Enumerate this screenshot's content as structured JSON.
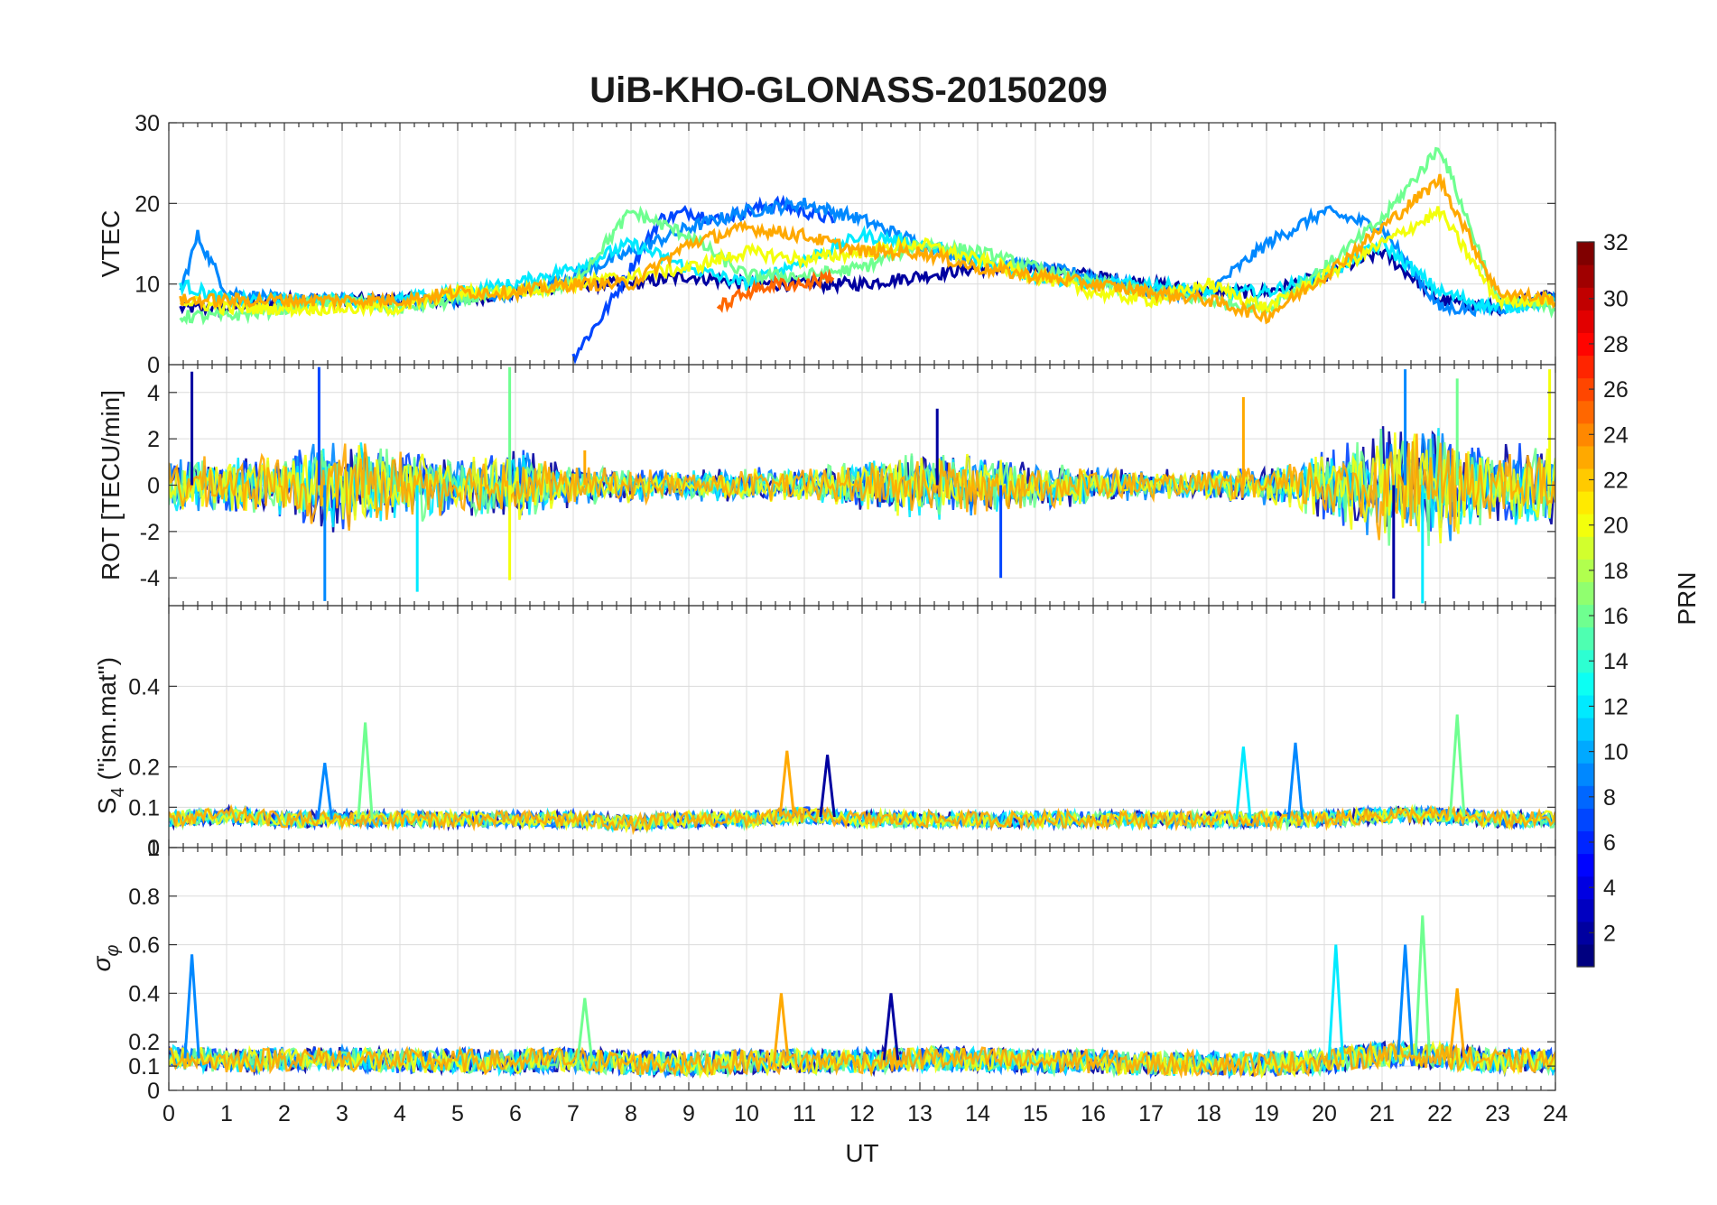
{
  "chart_data": {
    "type": "line",
    "title": "UiB-KHO-GLONASS-20150209",
    "xlabel": "UT",
    "xlim": [
      0,
      24
    ],
    "xticks": [
      0,
      1,
      2,
      3,
      4,
      5,
      6,
      7,
      8,
      9,
      10,
      11,
      12,
      13,
      14,
      15,
      16,
      17,
      18,
      19,
      20,
      21,
      22,
      23,
      24
    ],
    "panels": [
      {
        "id": "vtec",
        "ylabel": "VTEC",
        "ylim": [
          0,
          30
        ],
        "ytick_labels": [
          "30",
          "20",
          "10"
        ],
        "yticks": [
          30,
          20,
          10
        ],
        "series": [
          {
            "prn": 2,
            "x": [
              0.2,
              1,
              2,
              3,
              4,
              5,
              6,
              7,
              8,
              9,
              10,
              11,
              12,
              13,
              14,
              15,
              16,
              17,
              18,
              19,
              20,
              21,
              22,
              23,
              24
            ],
            "y": [
              7,
              7,
              8,
              8,
              8,
              8,
              9,
              10,
              10,
              11,
              10,
              10,
              10,
              11,
              12,
              12,
              11,
              10,
              9,
              9,
              11,
              14,
              8,
              7,
              9
            ]
          },
          {
            "prn": 7,
            "x": [
              7.0,
              7.5,
              8.0,
              8.5,
              9.0,
              9.5,
              10.0,
              10.5,
              11.0,
              11.5
            ],
            "y": [
              1,
              6,
              12,
              18,
              19,
              18,
              19,
              20,
              19,
              18
            ]
          },
          {
            "prn": 9,
            "x": [
              0.2,
              0.5,
              1,
              2,
              3,
              4,
              5,
              6,
              7,
              8,
              9,
              10,
              11,
              12,
              13,
              14,
              15,
              16,
              17,
              18,
              19,
              20,
              21,
              22,
              23,
              24
            ],
            "y": [
              9,
              16,
              9,
              8,
              8,
              8,
              8,
              9,
              11,
              14,
              17,
              19,
              20,
              18,
              15,
              13,
              12,
              11,
              9,
              9,
              15,
              19,
              17,
              7,
              7,
              8
            ]
          },
          {
            "prn": 12,
            "x": [
              0.2,
              1,
              2,
              3,
              4,
              5,
              6,
              7,
              8,
              9,
              10,
              11,
              12,
              13,
              14,
              15,
              16,
              17,
              18,
              19,
              20,
              21,
              22,
              23,
              24
            ],
            "y": [
              10,
              8,
              8,
              8,
              8,
              9,
              10,
              12,
              15,
              12,
              10,
              13,
              16,
              15,
              13,
              11,
              10,
              10,
              9,
              9,
              11,
              15,
              9,
              7,
              8
            ]
          },
          {
            "prn": 16,
            "x": [
              0.2,
              1,
              2,
              3,
              4,
              5,
              6,
              7,
              8,
              9,
              10,
              11,
              12,
              13,
              14,
              15,
              16,
              17,
              18,
              19,
              20,
              21,
              22,
              23,
              24
            ],
            "y": [
              6,
              6,
              7,
              8,
              7,
              8,
              9,
              10,
              19,
              16,
              11,
              11,
              12,
              15,
              14,
              12,
              10,
              9,
              8,
              7,
              12,
              18,
              27,
              8,
              7
            ]
          },
          {
            "prn": 20,
            "x": [
              0.2,
              1,
              2,
              3,
              4,
              5,
              6,
              7,
              8,
              9,
              10,
              11,
              12,
              13,
              14,
              15,
              16,
              17,
              18,
              19,
              20,
              21,
              22,
              23,
              24
            ],
            "y": [
              8,
              7,
              7,
              7,
              7,
              9,
              9,
              10,
              11,
              12,
              14,
              13,
              14,
              15,
              13,
              11,
              9,
              8,
              10,
              7,
              11,
              15,
              19,
              8,
              8
            ]
          },
          {
            "prn": 23,
            "x": [
              0.2,
              1,
              2,
              3,
              4,
              5,
              6,
              7,
              8,
              9,
              10,
              11,
              12,
              13,
              14,
              15,
              16,
              17,
              18,
              19,
              20,
              21,
              22,
              23,
              24
            ],
            "y": [
              8,
              8,
              8,
              8,
              8,
              9,
              9,
              10,
              10,
              15,
              17,
              16,
              14,
              14,
              12,
              11,
              10,
              9,
              8,
              6,
              11,
              17,
              23,
              9,
              8
            ]
          },
          {
            "prn": 25,
            "x": [
              9.5,
              10,
              10.5,
              11,
              11.5
            ],
            "y": [
              7,
              9,
              10,
              10,
              11
            ]
          }
        ]
      },
      {
        "id": "rot",
        "ylabel": "ROT [TECU/min]",
        "ylim": [
          -5.2,
          5.2
        ],
        "ytick_labels": [
          "4",
          "2",
          "0",
          "-2",
          "-4"
        ],
        "yticks": [
          4,
          2,
          0,
          -2,
          -4
        ],
        "top_label": "0",
        "noise_envelope": {
          "hours": [
            0,
            1,
            2,
            3,
            4,
            5,
            6,
            7,
            8,
            9,
            10,
            11,
            12,
            13,
            14,
            15,
            16,
            17,
            18,
            19,
            20,
            21,
            22,
            23,
            24
          ],
          "amplitude": [
            1.5,
            1.2,
            1.6,
            2.2,
            1.8,
            1.2,
            1.8,
            1.0,
            0.8,
            0.7,
            0.8,
            0.8,
            1.2,
            1.6,
            1.4,
            1.1,
            0.9,
            0.7,
            0.7,
            0.9,
            1.6,
            2.8,
            2.8,
            1.9,
            2.0
          ]
        },
        "spikes": [
          {
            "x": 0.4,
            "y": 4.9
          },
          {
            "x": 2.6,
            "y": 5.1
          },
          {
            "x": 2.7,
            "y": -5.0
          },
          {
            "x": 4.3,
            "y": -4.6
          },
          {
            "x": 5.9,
            "y": 5.1
          },
          {
            "x": 5.9,
            "y": -4.1
          },
          {
            "x": 7.2,
            "y": 1.5
          },
          {
            "x": 13.3,
            "y": 3.3
          },
          {
            "x": 14.4,
            "y": -4.0
          },
          {
            "x": 21.4,
            "y": 5.0
          },
          {
            "x": 21.7,
            "y": -5.1
          },
          {
            "x": 22.3,
            "y": 4.6
          },
          {
            "x": 23.9,
            "y": 5.0
          },
          {
            "x": 18.6,
            "y": 3.8
          },
          {
            "x": 21.2,
            "y": -4.9
          }
        ]
      },
      {
        "id": "s4",
        "ylabel": "S4 (\"ism.mat\")",
        "ylim": [
          0,
          0.6
        ],
        "ytick_labels": [
          "0.4",
          "0.2",
          "0.1",
          "0"
        ],
        "yticks": [
          0.4,
          0.2,
          0.1,
          0
        ],
        "baseline_hours": [
          0,
          1,
          2,
          3,
          4,
          5,
          6,
          7,
          8,
          9,
          10,
          11,
          12,
          13,
          14,
          15,
          16,
          17,
          18,
          19,
          20,
          21,
          22,
          23,
          24
        ],
        "baseline_values": [
          0.07,
          0.08,
          0.07,
          0.07,
          0.07,
          0.07,
          0.07,
          0.07,
          0.06,
          0.07,
          0.07,
          0.08,
          0.07,
          0.07,
          0.07,
          0.07,
          0.07,
          0.07,
          0.07,
          0.07,
          0.07,
          0.08,
          0.08,
          0.07,
          0.07
        ],
        "peaks": [
          {
            "x": 2.7,
            "y": 0.21
          },
          {
            "x": 3.4,
            "y": 0.31
          },
          {
            "x": 10.7,
            "y": 0.24
          },
          {
            "x": 11.4,
            "y": 0.23
          },
          {
            "x": 18.6,
            "y": 0.25
          },
          {
            "x": 19.5,
            "y": 0.26
          },
          {
            "x": 22.3,
            "y": 0.33
          }
        ]
      },
      {
        "id": "sigphi",
        "ylabel": "σφ",
        "ylim": [
          0,
          1.0
        ],
        "ytick_labels": [
          "0.8",
          "0.6",
          "0.4",
          "0.2",
          "0.1",
          "0"
        ],
        "yticks": [
          0.8,
          0.6,
          0.4,
          0.2,
          0.1,
          0
        ],
        "top_label": "1",
        "baseline_hours": [
          0,
          1,
          2,
          3,
          4,
          5,
          6,
          7,
          8,
          9,
          10,
          11,
          12,
          13,
          14,
          15,
          16,
          17,
          18,
          19,
          20,
          21,
          22,
          23,
          24
        ],
        "baseline_values": [
          0.14,
          0.12,
          0.13,
          0.13,
          0.12,
          0.12,
          0.12,
          0.13,
          0.11,
          0.11,
          0.12,
          0.12,
          0.12,
          0.13,
          0.13,
          0.12,
          0.12,
          0.11,
          0.11,
          0.11,
          0.12,
          0.15,
          0.14,
          0.12,
          0.12
        ],
        "peaks": [
          {
            "x": 0.4,
            "y": 0.56
          },
          {
            "x": 7.2,
            "y": 0.38
          },
          {
            "x": 10.6,
            "y": 0.4
          },
          {
            "x": 12.5,
            "y": 0.4
          },
          {
            "x": 20.2,
            "y": 0.6
          },
          {
            "x": 21.4,
            "y": 0.6
          },
          {
            "x": 21.7,
            "y": 0.72
          },
          {
            "x": 22.3,
            "y": 0.42
          }
        ]
      }
    ],
    "colorbar": {
      "label": "PRN",
      "min": 1,
      "max": 32,
      "tick_labels": [
        "32",
        "30",
        "28",
        "26",
        "24",
        "22",
        "20",
        "18",
        "16",
        "14",
        "12",
        "10",
        "8",
        "6",
        "4",
        "2"
      ],
      "ticks": [
        32,
        30,
        28,
        26,
        24,
        22,
        20,
        18,
        16,
        14,
        12,
        10,
        8,
        6,
        4,
        2
      ],
      "colormap": "jet",
      "colors": [
        "#00008f",
        "#0000ff",
        "#0080ff",
        "#00ffff",
        "#80ff80",
        "#ffff00",
        "#ff8000",
        "#ff0000",
        "#800000"
      ]
    }
  }
}
